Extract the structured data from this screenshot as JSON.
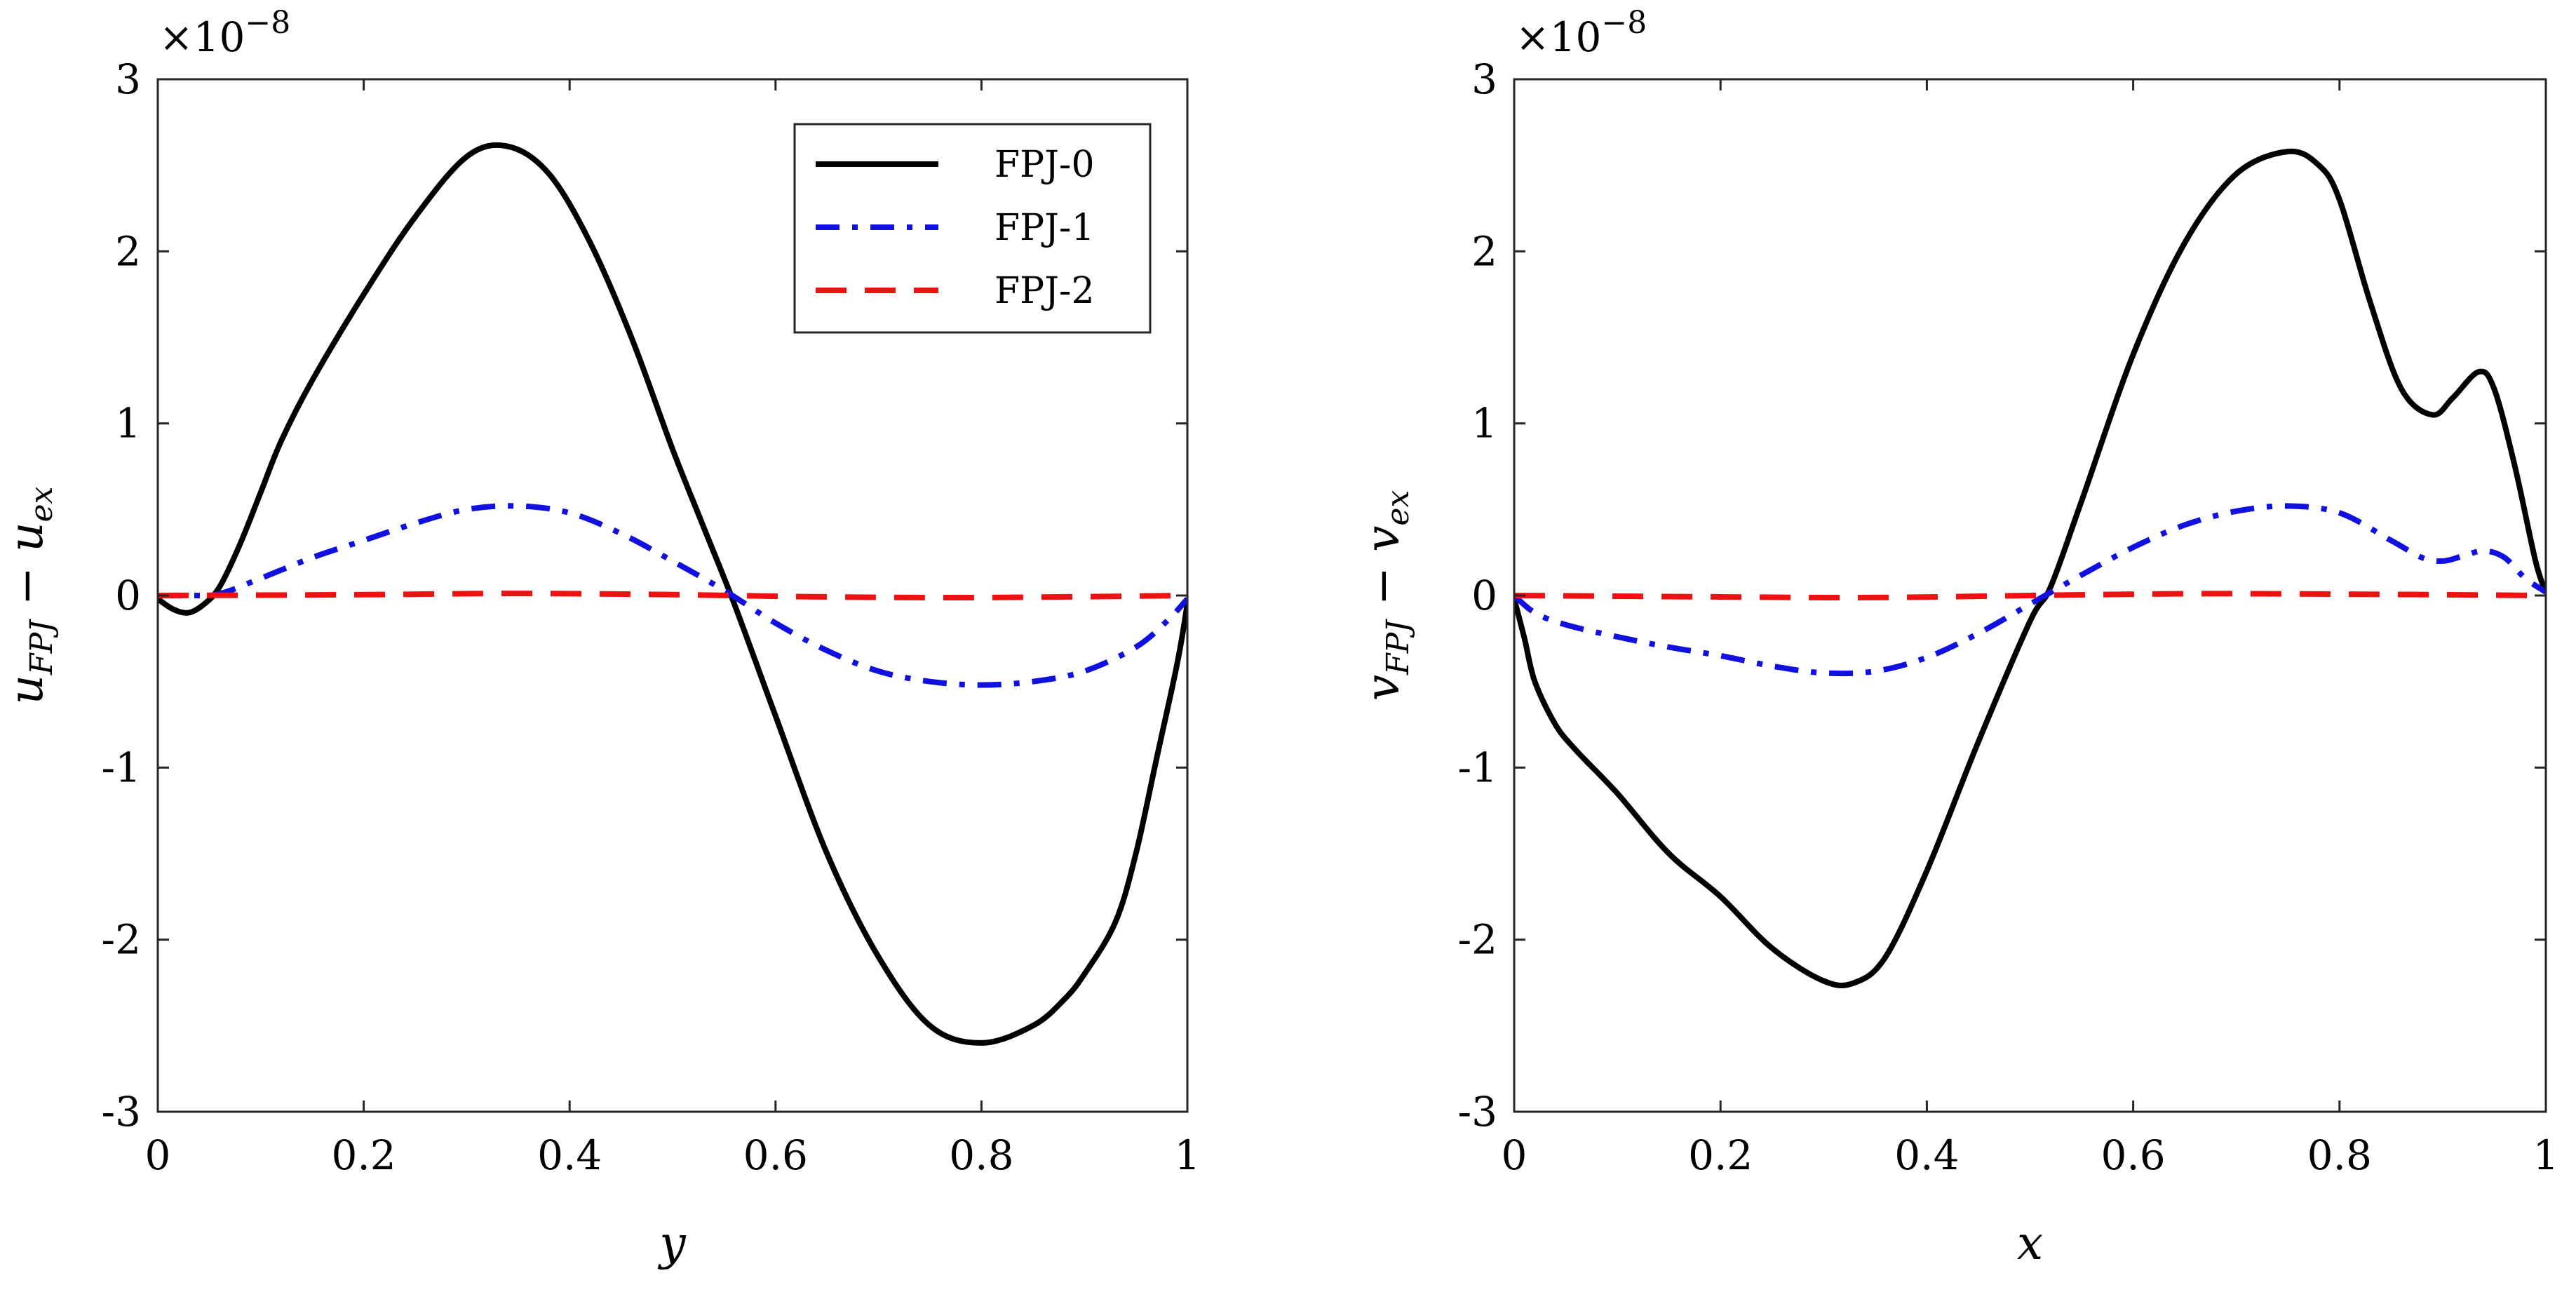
{
  "chart_data": [
    {
      "type": "line",
      "xlabel_main": "y",
      "ylabel_main": "u",
      "ylabel_sub1": "FPJ",
      "ylabel_mid": " − ",
      "ylabel_main2": "u",
      "ylabel_sub2": "ex",
      "exponent_base": "×10",
      "exponent_power": "−8",
      "xlim": [
        0,
        1
      ],
      "ylim": [
        -3,
        3
      ],
      "xticks": [
        0,
        0.2,
        0.4,
        0.6,
        0.8,
        1
      ],
      "xtick_labels": [
        "0",
        "0.2",
        "0.4",
        "0.6",
        "0.8",
        "1"
      ],
      "yticks": [
        -3,
        -2,
        -1,
        0,
        1,
        2,
        3
      ],
      "ytick_labels": [
        "-3",
        "-2",
        "-1",
        "0",
        "1",
        "2",
        "3"
      ],
      "legend": true,
      "legend_position": "top-right",
      "series": [
        {
          "name": "FPJ-0",
          "color": "#000000",
          "style": "solid",
          "x": [
            0,
            0.015,
            0.03,
            0.045,
            0.06,
            0.08,
            0.1,
            0.12,
            0.15,
            0.2,
            0.25,
            0.3,
            0.34,
            0.38,
            0.42,
            0.46,
            0.5,
            0.53,
            0.56,
            0.6,
            0.65,
            0.7,
            0.75,
            0.8,
            0.85,
            0.88,
            0.9,
            0.93,
            0.95,
            0.97,
            0.99,
            1.0
          ],
          "y": [
            -0.02,
            -0.08,
            -0.1,
            -0.05,
            0.05,
            0.3,
            0.6,
            0.9,
            1.25,
            1.75,
            2.2,
            2.55,
            2.61,
            2.45,
            2.05,
            1.5,
            0.85,
            0.4,
            -0.05,
            -0.7,
            -1.5,
            -2.1,
            -2.5,
            -2.6,
            -2.5,
            -2.35,
            -2.2,
            -1.9,
            -1.5,
            -0.95,
            -0.4,
            -0.05
          ]
        },
        {
          "name": "FPJ-1",
          "color": "#1010E0",
          "style": "dashdot",
          "x": [
            0,
            0.03,
            0.06,
            0.1,
            0.15,
            0.2,
            0.25,
            0.3,
            0.35,
            0.4,
            0.45,
            0.5,
            0.55,
            0.6,
            0.65,
            0.7,
            0.75,
            0.8,
            0.85,
            0.9,
            0.95,
            0.98,
            1.0
          ],
          "y": [
            0,
            0,
            0.01,
            0.1,
            0.22,
            0.32,
            0.42,
            0.5,
            0.52,
            0.48,
            0.36,
            0.2,
            0.03,
            -0.16,
            -0.32,
            -0.44,
            -0.5,
            -0.52,
            -0.5,
            -0.44,
            -0.3,
            -0.15,
            -0.02
          ]
        },
        {
          "name": "FPJ-2",
          "color": "#EE1111",
          "style": "dashed",
          "x": [
            0,
            0.2,
            0.35,
            0.5,
            0.65,
            0.8,
            1.0
          ],
          "y": [
            0,
            0.005,
            0.012,
            0.005,
            -0.008,
            -0.012,
            0
          ]
        }
      ]
    },
    {
      "type": "line",
      "xlabel_main": "x",
      "ylabel_main": "v",
      "ylabel_sub1": "FPJ",
      "ylabel_mid": " − ",
      "ylabel_main2": "v",
      "ylabel_sub2": "ex",
      "exponent_base": "×10",
      "exponent_power": "−8",
      "xlim": [
        0,
        1
      ],
      "ylim": [
        -3,
        3
      ],
      "xticks": [
        0,
        0.2,
        0.4,
        0.6,
        0.8,
        1
      ],
      "xtick_labels": [
        "0",
        "0.2",
        "0.4",
        "0.6",
        "0.8",
        "1"
      ],
      "yticks": [
        -3,
        -2,
        -1,
        0,
        1,
        2,
        3
      ],
      "ytick_labels": [
        "-3",
        "-2",
        "-1",
        "0",
        "1",
        "2",
        "3"
      ],
      "legend": false,
      "series": [
        {
          "name": "FPJ-0",
          "color": "#000000",
          "style": "solid",
          "x": [
            0,
            0.01,
            0.02,
            0.04,
            0.06,
            0.1,
            0.15,
            0.2,
            0.25,
            0.3,
            0.33,
            0.36,
            0.4,
            0.45,
            0.5,
            0.52,
            0.55,
            0.6,
            0.65,
            0.7,
            0.75,
            0.78,
            0.8,
            0.83,
            0.86,
            0.89,
            0.91,
            0.935,
            0.95,
            0.97,
            0.99,
            1.0
          ],
          "y": [
            -0.02,
            -0.25,
            -0.5,
            -0.75,
            -0.9,
            -1.15,
            -1.5,
            -1.75,
            -2.05,
            -2.24,
            -2.25,
            -2.1,
            -1.6,
            -0.85,
            -0.15,
            0.05,
            0.55,
            1.4,
            2.05,
            2.45,
            2.58,
            2.5,
            2.3,
            1.7,
            1.2,
            1.05,
            1.15,
            1.3,
            1.2,
            0.75,
            0.2,
            0.02
          ]
        },
        {
          "name": "FPJ-1",
          "color": "#1010E0",
          "style": "dashdot",
          "x": [
            0,
            0.02,
            0.05,
            0.1,
            0.15,
            0.2,
            0.25,
            0.3,
            0.35,
            0.4,
            0.45,
            0.5,
            0.55,
            0.6,
            0.65,
            0.7,
            0.75,
            0.8,
            0.85,
            0.88,
            0.9,
            0.92,
            0.94,
            0.96,
            0.98,
            1.0
          ],
          "y": [
            0,
            -0.1,
            -0.17,
            -0.24,
            -0.3,
            -0.35,
            -0.41,
            -0.45,
            -0.44,
            -0.36,
            -0.22,
            -0.05,
            0.12,
            0.28,
            0.41,
            0.49,
            0.52,
            0.48,
            0.32,
            0.22,
            0.2,
            0.23,
            0.26,
            0.22,
            0.1,
            0.02
          ]
        },
        {
          "name": "FPJ-2",
          "color": "#EE1111",
          "style": "dashed",
          "x": [
            0,
            0.2,
            0.35,
            0.5,
            0.65,
            0.8,
            1.0
          ],
          "y": [
            0,
            -0.008,
            -0.012,
            0,
            0.01,
            0.008,
            0
          ]
        }
      ]
    }
  ]
}
